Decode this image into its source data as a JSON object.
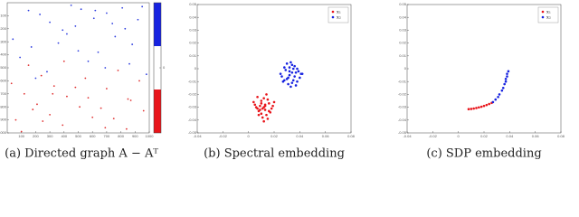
{
  "chart_data": [
    {
      "type": "scatter",
      "caption": "(a) Directed graph A − Aᵀ",
      "xlim": [
        0,
        1000
      ],
      "ylim": [
        0,
        1000
      ],
      "y_inverted": true,
      "xticks": [
        100,
        200,
        300,
        400,
        500,
        600,
        700,
        800,
        900,
        1000
      ],
      "yticks": [
        100,
        200,
        300,
        400,
        500,
        600,
        700,
        800,
        900,
        1000
      ],
      "legend": false,
      "colorbar": {
        "lim": [
          -1,
          1
        ],
        "ticks": [
          0
        ],
        "colors": [
          "#e8141a",
          "#ffffff",
          "#1622e0"
        ]
      },
      "series": [
        {
          "color": "#3040e0",
          "x": [
            520,
            610,
            700,
            830,
            950,
            150,
            300,
            420,
            880,
            760,
            640,
            90,
            230,
            360,
            480,
            570,
            690,
            810,
            920,
            40,
            170,
            280,
            390,
            500,
            620,
            740,
            860,
            980,
            200,
            450
          ],
          "y": [
            50,
            120,
            80,
            200,
            30,
            60,
            150,
            240,
            320,
            260,
            380,
            420,
            90,
            310,
            180,
            450,
            500,
            40,
            130,
            280,
            340,
            530,
            210,
            370,
            60,
            160,
            470,
            550,
            580,
            20
          ]
        },
        {
          "color": "#e03030",
          "x": [
            30,
            120,
            210,
            300,
            390,
            480,
            570,
            660,
            750,
            840,
            930,
            60,
            150,
            240,
            330,
            420,
            510,
            600,
            690,
            780,
            870,
            960,
            100,
            250,
            400,
            550,
            700,
            850,
            180,
            320
          ],
          "y": [
            620,
            700,
            780,
            860,
            940,
            650,
            730,
            810,
            890,
            970,
            600,
            900,
            480,
            560,
            640,
            720,
            800,
            880,
            960,
            520,
            750,
            830,
            990,
            910,
            450,
            580,
            660,
            740,
            820,
            700
          ]
        }
      ]
    },
    {
      "type": "scatter",
      "caption": "(b) Spectral embedding",
      "xlim": [
        -0.04,
        0.08
      ],
      "ylim": [
        -0.05,
        0.05
      ],
      "xticks": [
        -0.04,
        -0.02,
        0,
        0.02,
        0.04,
        0.06,
        0.08
      ],
      "yticks": [
        -0.05,
        -0.04,
        -0.03,
        -0.02,
        -0.01,
        0,
        0.01,
        0.02,
        0.03,
        0.04,
        0.05
      ],
      "legend": "upper right",
      "series": [
        {
          "name": "x₁",
          "color": "#e8141a",
          "x": [
            0.005,
            0.008,
            0.01,
            0.012,
            0.014,
            0.016,
            0.018,
            0.007,
            0.011,
            0.013,
            0.015,
            0.009,
            0.012,
            0.017,
            0.006,
            0.01,
            0.014,
            0.019,
            0.008,
            0.013,
            0.011,
            0.015,
            0.004,
            0.012,
            0.016,
            0.009,
            0.02,
            0.01,
            0.013,
            0.007
          ],
          "y": [
            -0.028,
            -0.033,
            -0.025,
            -0.03,
            -0.036,
            -0.027,
            -0.031,
            -0.022,
            -0.038,
            -0.029,
            -0.024,
            -0.032,
            -0.041,
            -0.034,
            -0.03,
            -0.027,
            -0.02,
            -0.029,
            -0.036,
            -0.032,
            -0.031,
            -0.039,
            -0.026,
            -0.023,
            -0.033,
            -0.029,
            -0.026,
            -0.035,
            -0.028,
            -0.031
          ]
        },
        {
          "name": "x₂",
          "color": "#1622e0",
          "x": [
            0.025,
            0.028,
            0.03,
            0.032,
            0.034,
            0.036,
            0.038,
            0.041,
            0.027,
            0.031,
            0.033,
            0.035,
            0.037,
            0.04,
            0.029,
            0.032,
            0.034,
            0.036,
            0.039,
            0.026,
            0.03,
            0.033,
            0.035,
            0.038,
            0.042,
            0.031,
            0.028,
            0.034,
            0.037,
            0.032
          ],
          "y": [
            -0.004,
            0.001,
            -0.008,
            -0.002,
            0.003,
            -0.006,
            0.0,
            -0.004,
            -0.01,
            -0.012,
            0.005,
            -0.009,
            -0.003,
            -0.007,
            -0.001,
            -0.005,
            -0.011,
            0.002,
            -0.002,
            -0.006,
            0.004,
            -0.014,
            0.0,
            -0.01,
            -0.004,
            -0.007,
            -0.009,
            -0.003,
            -0.013,
            0.001
          ]
        }
      ]
    },
    {
      "type": "scatter",
      "caption": "(c) SDP embedding",
      "xlim": [
        -0.04,
        0.08
      ],
      "ylim": [
        -0.05,
        0.05
      ],
      "xticks": [
        -0.04,
        -0.02,
        0,
        0.02,
        0.04,
        0.06,
        0.08
      ],
      "yticks": [
        -0.05,
        -0.04,
        -0.03,
        -0.02,
        -0.01,
        0,
        0.01,
        0.02,
        0.03,
        0.04,
        0.05
      ],
      "legend": "upper right",
      "series": [
        {
          "name": "x₁",
          "color": "#e8141a",
          "x": [
            0.008,
            0.01,
            0.012,
            0.014,
            0.016,
            0.018,
            0.02,
            0.022,
            0.024,
            0.026
          ],
          "y": [
            -0.0315,
            -0.0313,
            -0.031,
            -0.0306,
            -0.0301,
            -0.0296,
            -0.029,
            -0.0283,
            -0.0275,
            -0.0266
          ]
        },
        {
          "name": "x₂",
          "color": "#1622e0",
          "x": [
            0.027,
            0.029,
            0.031,
            0.032,
            0.034,
            0.035,
            0.036,
            0.037,
            0.037,
            0.038,
            0.038,
            0.039
          ],
          "y": [
            -0.026,
            -0.024,
            -0.022,
            -0.02,
            -0.017,
            -0.015,
            -0.012,
            -0.01,
            -0.008,
            -0.006,
            -0.004,
            -0.002
          ]
        }
      ]
    }
  ]
}
